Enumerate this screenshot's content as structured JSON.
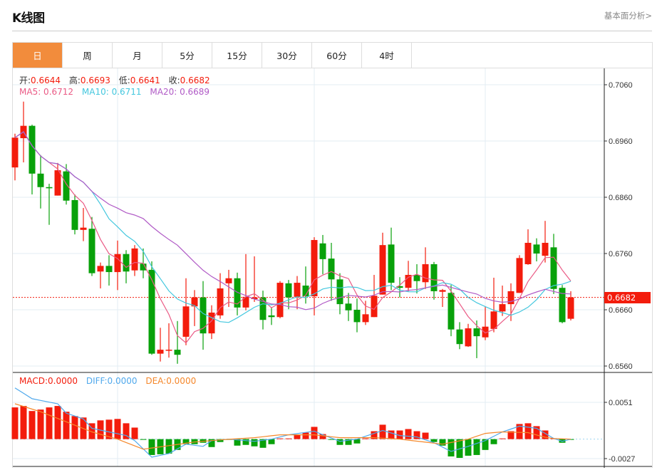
{
  "header": {
    "title": "K线图",
    "link": "基本面分析>"
  },
  "tabs": [
    {
      "label": "日",
      "active": true
    },
    {
      "label": "周"
    },
    {
      "label": "月"
    },
    {
      "label": "5分"
    },
    {
      "label": "15分"
    },
    {
      "label": "30分"
    },
    {
      "label": "60分"
    },
    {
      "label": "4时"
    }
  ],
  "legend": {
    "open_label": "开:",
    "open": "0.6644",
    "high_label": "高:",
    "high": "0.6693",
    "low_label": "低:",
    "low": "0.6641",
    "close_label": "收:",
    "close": "0.6682",
    "ma5": "MA5: 0.6712",
    "ma10": "MA10: 0.6711",
    "ma20": "MA20: 0.6689",
    "macd": "MACD:0.0000",
    "diff": "DIFF:0.0000",
    "dea": "DEA:0.0000"
  },
  "current_price": "0.6682",
  "colors": {
    "up": "#f31c0c",
    "down": "#08a10a",
    "ma5": "#ea5a85",
    "ma10": "#43c7de",
    "ma20": "#b05ac6",
    "diff": "#4fa8ec",
    "dea": "#f5872a",
    "accent": "#f28c3c"
  },
  "chart_data": {
    "type": "candlestick",
    "price_axis": {
      "ticks": [
        "0.7060",
        "0.6960",
        "0.6860",
        "0.6760",
        "0.6660",
        "0.6560"
      ],
      "range": [
        0.656,
        0.706
      ]
    },
    "macd_axis": {
      "ticks": [
        "0.0051",
        "-0.0027"
      ],
      "range": [
        -0.0027,
        0.0051
      ]
    },
    "ohlc": [
      [
        0.6913,
        0.6973,
        0.689,
        0.6966
      ],
      [
        0.6965,
        0.703,
        0.6922,
        0.6987
      ],
      [
        0.6987,
        0.6989,
        0.6865,
        0.6902
      ],
      [
        0.6902,
        0.6935,
        0.684,
        0.6878
      ],
      [
        0.6878,
        0.6884,
        0.6811,
        0.6876
      ],
      [
        0.6863,
        0.6921,
        0.6863,
        0.6908
      ],
      [
        0.6906,
        0.6919,
        0.6847,
        0.6854
      ],
      [
        0.6855,
        0.6865,
        0.6794,
        0.6802
      ],
      [
        0.6802,
        0.6841,
        0.6782,
        0.6806
      ],
      [
        0.6804,
        0.6825,
        0.672,
        0.6725
      ],
      [
        0.6728,
        0.6744,
        0.6698,
        0.6738
      ],
      [
        0.6738,
        0.6757,
        0.6703,
        0.6727
      ],
      [
        0.6727,
        0.6783,
        0.6695,
        0.6759
      ],
      [
        0.6759,
        0.6766,
        0.6707,
        0.6728
      ],
      [
        0.673,
        0.6775,
        0.672,
        0.6769
      ],
      [
        0.6742,
        0.6769,
        0.6716,
        0.673
      ],
      [
        0.6731,
        0.6746,
        0.658,
        0.6582
      ],
      [
        0.6582,
        0.6628,
        0.6568,
        0.6589
      ],
      [
        0.6588,
        0.6636,
        0.6575,
        0.6589
      ],
      [
        0.6589,
        0.664,
        0.6564,
        0.658
      ],
      [
        0.6612,
        0.6716,
        0.6597,
        0.6666
      ],
      [
        0.6666,
        0.6695,
        0.6631,
        0.6682
      ],
      [
        0.6682,
        0.6711,
        0.6589,
        0.6618
      ],
      [
        0.6618,
        0.6668,
        0.6608,
        0.6655
      ],
      [
        0.665,
        0.6725,
        0.6644,
        0.6698
      ],
      [
        0.6707,
        0.6731,
        0.6665,
        0.6716
      ],
      [
        0.6716,
        0.6726,
        0.665,
        0.6664
      ],
      [
        0.6664,
        0.6759,
        0.6659,
        0.6683
      ],
      [
        0.6679,
        0.6755,
        0.6674,
        0.6682
      ],
      [
        0.6682,
        0.6694,
        0.6625,
        0.6642
      ],
      [
        0.665,
        0.6665,
        0.6633,
        0.6647
      ],
      [
        0.6647,
        0.6711,
        0.6645,
        0.6708
      ],
      [
        0.6707,
        0.6713,
        0.6661,
        0.6682
      ],
      [
        0.6683,
        0.672,
        0.6661,
        0.6708
      ],
      [
        0.6703,
        0.6737,
        0.6671,
        0.6684
      ],
      [
        0.6684,
        0.6789,
        0.665,
        0.6784
      ],
      [
        0.6778,
        0.6793,
        0.6723,
        0.675
      ],
      [
        0.6751,
        0.6779,
        0.6676,
        0.6714
      ],
      [
        0.6714,
        0.6725,
        0.6652,
        0.667
      ],
      [
        0.6671,
        0.669,
        0.664,
        0.6659
      ],
      [
        0.666,
        0.668,
        0.662,
        0.6638
      ],
      [
        0.6638,
        0.6676,
        0.6633,
        0.6652
      ],
      [
        0.6647,
        0.6722,
        0.6647,
        0.6685
      ],
      [
        0.6687,
        0.6797,
        0.6687,
        0.6775
      ],
      [
        0.6776,
        0.6806,
        0.6695,
        0.6708
      ],
      [
        0.6702,
        0.6718,
        0.6682,
        0.6699
      ],
      [
        0.6699,
        0.6747,
        0.6693,
        0.6722
      ],
      [
        0.6722,
        0.6741,
        0.6689,
        0.6711
      ],
      [
        0.6709,
        0.6771,
        0.6697,
        0.6741
      ],
      [
        0.6741,
        0.6745,
        0.6678,
        0.6693
      ],
      [
        0.6692,
        0.6697,
        0.6665,
        0.6695
      ],
      [
        0.669,
        0.6704,
        0.6613,
        0.6625
      ],
      [
        0.6625,
        0.6638,
        0.659,
        0.6599
      ],
      [
        0.6595,
        0.6635,
        0.6594,
        0.6627
      ],
      [
        0.6627,
        0.6641,
        0.6574,
        0.6613
      ],
      [
        0.6611,
        0.6666,
        0.6606,
        0.663
      ],
      [
        0.6626,
        0.6717,
        0.662,
        0.6657
      ],
      [
        0.6657,
        0.6703,
        0.6649,
        0.667
      ],
      [
        0.667,
        0.6707,
        0.664,
        0.6693
      ],
      [
        0.669,
        0.6757,
        0.669,
        0.6752
      ],
      [
        0.6741,
        0.6803,
        0.674,
        0.6779
      ],
      [
        0.6776,
        0.6787,
        0.6746,
        0.676
      ],
      [
        0.6756,
        0.6818,
        0.6744,
        0.6779
      ],
      [
        0.6771,
        0.6795,
        0.6688,
        0.6697
      ],
      [
        0.6699,
        0.6704,
        0.6636,
        0.6638
      ],
      [
        0.6644,
        0.6693,
        0.6641,
        0.6682
      ]
    ],
    "macd_hist": [
      0.0044,
      0.0046,
      0.0039,
      0.0041,
      0.0044,
      0.0046,
      0.0038,
      0.0032,
      0.003,
      0.0022,
      0.0026,
      0.0027,
      0.0028,
      0.0022,
      0.0016,
      -0.0001,
      -0.0022,
      -0.0021,
      -0.002,
      -0.0015,
      -0.0007,
      -0.0007,
      -0.0005,
      -0.0011,
      -0.0004,
      -0.0001,
      -0.0009,
      -0.0008,
      -0.001,
      -0.0012,
      -0.0007,
      0.0001,
      0.0001,
      0.0006,
      0.0009,
      0.0017,
      0.0007,
      -0.0001,
      -0.0008,
      -0.0008,
      -0.0006,
      0.0001,
      0.0011,
      0.002,
      0.0012,
      0.0012,
      0.0014,
      0.0011,
      0.0009,
      -0.0004,
      -0.0009,
      -0.0024,
      -0.0026,
      -0.0023,
      -0.0022,
      -0.0015,
      -0.0007,
      0.0001,
      0.0011,
      0.0021,
      0.0022,
      0.0018,
      0.0012,
      0.0001,
      -0.0005,
      -0.0001
    ],
    "diff_points": [
      [
        0,
        0.0071
      ],
      [
        2,
        0.0056
      ],
      [
        5,
        0.0049
      ],
      [
        6,
        0.0036
      ],
      [
        8,
        0.0028
      ],
      [
        9,
        0.0015
      ],
      [
        11,
        0.001
      ],
      [
        13,
        0.0005
      ],
      [
        14,
        -0.0002
      ],
      [
        16,
        -0.0025
      ],
      [
        18,
        -0.002
      ],
      [
        20,
        -0.0007
      ],
      [
        22,
        -0.001
      ],
      [
        23,
        -0.0002
      ],
      [
        25,
        0
      ],
      [
        28,
        -0.0003
      ],
      [
        30,
        0
      ],
      [
        32,
        0.0006
      ],
      [
        35,
        0.0011
      ],
      [
        36,
        0.0006
      ],
      [
        38,
        -0.0003
      ],
      [
        40,
        0
      ],
      [
        42,
        0.0008
      ],
      [
        43,
        0.0012
      ],
      [
        45,
        0.0005
      ],
      [
        47,
        0.0003
      ],
      [
        49,
        -0.0005
      ],
      [
        51,
        -0.0017
      ],
      [
        53,
        -0.001
      ],
      [
        55,
        -0.0002
      ],
      [
        57,
        0.001
      ],
      [
        59,
        0.0018
      ],
      [
        61,
        0.0015
      ],
      [
        63,
        0.0001
      ],
      [
        64,
        -0.0003
      ],
      [
        65,
        0
      ]
    ],
    "dea_points": [
      [
        0,
        0.0049
      ],
      [
        3,
        0.0038
      ],
      [
        6,
        0.0024
      ],
      [
        9,
        0.001
      ],
      [
        12,
        0
      ],
      [
        15,
        -0.0014
      ],
      [
        18,
        -0.0009
      ],
      [
        21,
        -0.0004
      ],
      [
        24,
        -0.0001
      ],
      [
        28,
        0.0002
      ],
      [
        31,
        0.0006
      ],
      [
        35,
        0.0006
      ],
      [
        38,
        0.0002
      ],
      [
        42,
        0.0002
      ],
      [
        45,
        0
      ],
      [
        50,
        -0.0007
      ],
      [
        53,
        0
      ],
      [
        55,
        0.0008
      ],
      [
        57,
        0.001
      ],
      [
        60,
        0.0009
      ],
      [
        62.5,
        0.0001
      ],
      [
        65,
        0
      ]
    ]
  }
}
